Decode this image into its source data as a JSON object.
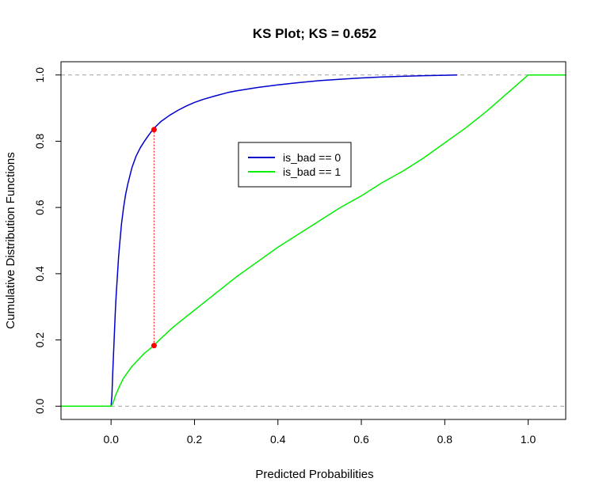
{
  "chart_data": {
    "type": "line",
    "title": "KS Plot; KS = 0.652",
    "xlabel": "Predicted Probabilities",
    "ylabel": "Cumulative Distribution Functions",
    "xlim": [
      -0.12,
      1.09
    ],
    "ylim": [
      -0.04,
      1.04
    ],
    "x_ticks": [
      0.0,
      0.2,
      0.4,
      0.6,
      0.8,
      1.0
    ],
    "x_tick_labels": [
      "0.0",
      "0.2",
      "0.4",
      "0.6",
      "0.8",
      "1.0"
    ],
    "y_ticks": [
      0.0,
      0.2,
      0.4,
      0.6,
      0.8,
      1.0
    ],
    "y_tick_labels": [
      "0.0",
      "0.2",
      "0.4",
      "0.6",
      "0.8",
      "1.0"
    ],
    "reference_lines": [
      {
        "axis": "y",
        "value": 0.0,
        "color": "#a0a0a0",
        "style": "dashed"
      },
      {
        "axis": "y",
        "value": 1.0,
        "color": "#a0a0a0",
        "style": "dashed"
      }
    ],
    "legend_position": "center",
    "series": [
      {
        "name": "is_bad == 0",
        "color": "#0000cc",
        "x": [
          -0.12,
          0.0,
          0.002,
          0.004,
          0.006,
          0.008,
          0.01,
          0.012,
          0.014,
          0.016,
          0.018,
          0.02,
          0.025,
          0.03,
          0.035,
          0.04,
          0.05,
          0.06,
          0.07,
          0.08,
          0.09,
          0.1,
          0.11,
          0.12,
          0.14,
          0.16,
          0.18,
          0.2,
          0.22,
          0.25,
          0.28,
          0.3,
          0.35,
          0.4,
          0.45,
          0.5,
          0.55,
          0.6,
          0.65,
          0.7,
          0.75,
          0.8,
          0.83
        ],
        "y": [
          0.0,
          0.0,
          0.03,
          0.1,
          0.16,
          0.22,
          0.28,
          0.33,
          0.37,
          0.41,
          0.45,
          0.48,
          0.55,
          0.6,
          0.64,
          0.67,
          0.72,
          0.755,
          0.78,
          0.8,
          0.818,
          0.835,
          0.848,
          0.86,
          0.878,
          0.893,
          0.906,
          0.917,
          0.926,
          0.937,
          0.947,
          0.952,
          0.962,
          0.97,
          0.977,
          0.983,
          0.987,
          0.991,
          0.994,
          0.996,
          0.998,
          0.999,
          1.0
        ]
      },
      {
        "name": "is_bad == 1",
        "color": "#00ee00",
        "x": [
          -0.12,
          0.0,
          0.005,
          0.01,
          0.02,
          0.03,
          0.05,
          0.08,
          0.1,
          0.12,
          0.15,
          0.2,
          0.25,
          0.3,
          0.35,
          0.4,
          0.45,
          0.5,
          0.55,
          0.6,
          0.65,
          0.7,
          0.75,
          0.8,
          0.85,
          0.9,
          0.95,
          1.0,
          1.09
        ],
        "y": [
          0.0,
          0.0,
          0.01,
          0.03,
          0.06,
          0.085,
          0.12,
          0.16,
          0.18,
          0.205,
          0.24,
          0.29,
          0.34,
          0.39,
          0.435,
          0.48,
          0.52,
          0.56,
          0.6,
          0.635,
          0.675,
          0.71,
          0.75,
          0.795,
          0.84,
          0.89,
          0.945,
          1.0,
          1.0
        ]
      }
    ],
    "ks_marker": {
      "x": 0.103,
      "y_start": 0.183,
      "y_end": 0.835,
      "color": "#ff0000"
    }
  }
}
